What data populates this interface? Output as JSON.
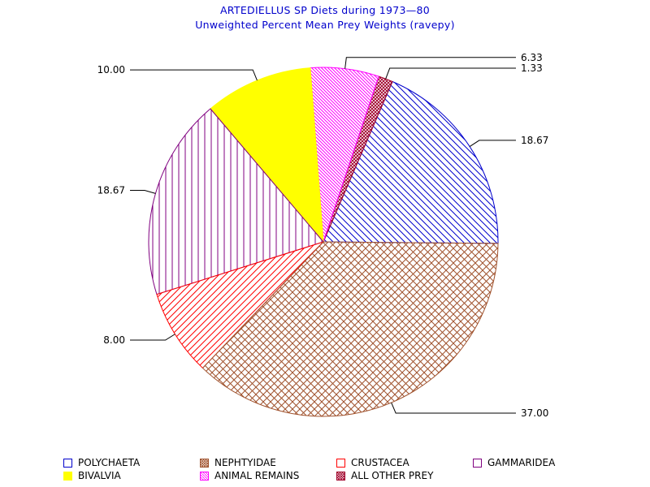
{
  "header": {
    "title": "ARTEDIELLUS SP Diets during 1973—80",
    "subtitle": "Unweighted Percent Mean Prey Weights (ravepy)"
  },
  "colors": {
    "title": "#0000cc",
    "polychaeta": "#0000cc",
    "nephtyidae": "#a0522d",
    "crustacea": "#ff0000",
    "gammaridea": "#800080",
    "bivalvia": "#ffff00",
    "animal_remains": "#ff00ff",
    "all_other_prey": "#a0002a"
  },
  "chart_data": {
    "type": "pie",
    "title": "ARTEDIELLUS SP Diets during 1973—80",
    "subtitle": "Unweighted Percent Mean Prey Weights (ravepy)",
    "slices": [
      {
        "name": "POLYCHAETA",
        "value": 18.67,
        "label": "18.67",
        "pattern": "diag-down",
        "color": "#0000cc"
      },
      {
        "name": "ALL OTHER PREY",
        "value": 1.33,
        "label": "1.33",
        "pattern": "crosshatch-dense",
        "color": "#a0002a"
      },
      {
        "name": "ANIMAL REMAINS",
        "value": 6.33,
        "label": "6.33",
        "pattern": "diag-dense",
        "color": "#ff00ff"
      },
      {
        "name": "BIVALVIA",
        "value": 10.0,
        "label": "10.00",
        "pattern": "solid",
        "color": "#ffff00"
      },
      {
        "name": "GAMMARIDEA",
        "value": 18.67,
        "label": "18.67",
        "pattern": "vertical",
        "color": "#800080"
      },
      {
        "name": "CRUSTACEA",
        "value": 8.0,
        "label": "8.00",
        "pattern": "diag-up",
        "color": "#ff0000"
      },
      {
        "name": "NEPHTYIDAE",
        "value": 37.0,
        "label": "37.00",
        "pattern": "crosshatch",
        "color": "#a0522d"
      }
    ],
    "legend_placement": "bottom",
    "legend": [
      {
        "label": "POLYCHAETA",
        "pattern": "diag-down",
        "color": "#0000cc"
      },
      {
        "label": "NEPHTYIDAE",
        "pattern": "crosshatch",
        "color": "#a0522d"
      },
      {
        "label": "CRUSTACEA",
        "pattern": "diag-up",
        "color": "#ff0000"
      },
      {
        "label": "GAMMARIDEA",
        "pattern": "vertical",
        "color": "#800080"
      },
      {
        "label": "BIVALVIA",
        "pattern": "solid",
        "color": "#ffff00"
      },
      {
        "label": "ANIMAL REMAINS",
        "pattern": "diag-dense",
        "color": "#ff00ff"
      },
      {
        "label": "ALL OTHER PREY",
        "pattern": "crosshatch-dense",
        "color": "#a0002a"
      }
    ]
  }
}
